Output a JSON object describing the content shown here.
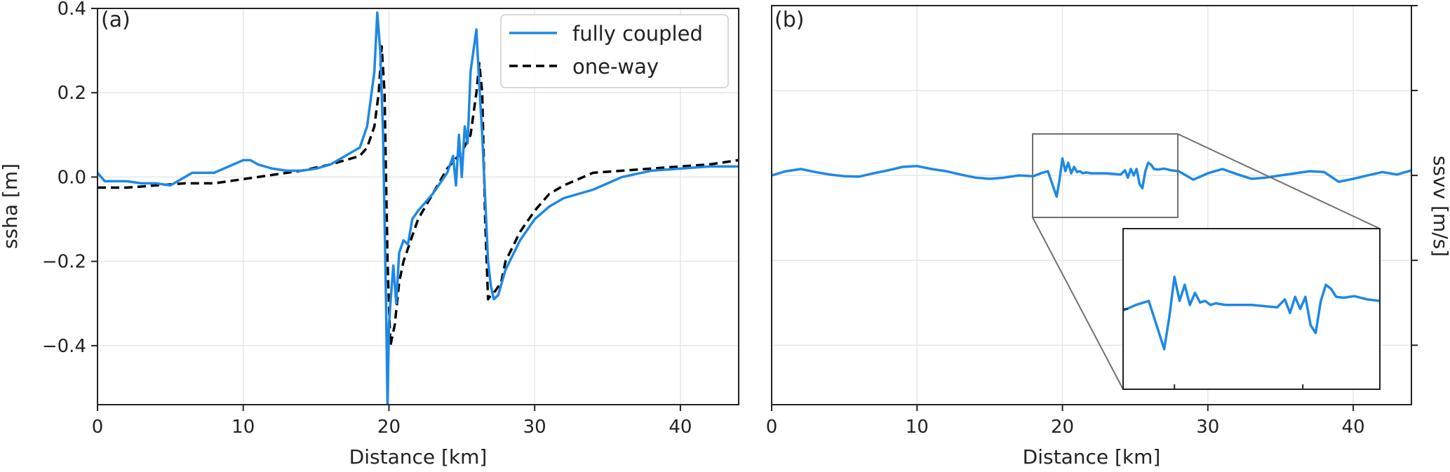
{
  "chart_data": [
    {
      "type": "line",
      "panel_label": "(a)",
      "xlabel": "Distance [km]",
      "ylabel": "ssha [m]",
      "xlim": [
        0,
        44
      ],
      "ylim": [
        -0.54,
        0.4
      ],
      "xticks": [
        0,
        10,
        20,
        30,
        40
      ],
      "xtick_labels": [
        "0",
        "10",
        "20",
        "30",
        "40"
      ],
      "yticks": [
        -0.4,
        -0.2,
        0.0,
        0.2,
        0.4
      ],
      "ytick_labels": [
        "−0.4",
        "−0.2",
        "0.0",
        "0.2",
        "0.4"
      ],
      "grid": true,
      "legend_position": "top-right",
      "series": [
        {
          "name": "fully coupled",
          "color": "#1e88e5",
          "style": "solid",
          "x": [
            0,
            0.5,
            1,
            2,
            3,
            4,
            5,
            6,
            6.5,
            7,
            8,
            9,
            10,
            10.5,
            11,
            12,
            13,
            14,
            15,
            16,
            17,
            17.5,
            18,
            18.5,
            19,
            19.2,
            19.4,
            19.6,
            19.8,
            19.9,
            20,
            20.1,
            20.3,
            20.5,
            20.7,
            21,
            21.3,
            21.6,
            22,
            23,
            24,
            24.4,
            24.6,
            24.8,
            25,
            25.2,
            25.4,
            25.6,
            25.8,
            26,
            26.2,
            26.4,
            26.6,
            26.8,
            27,
            27.2,
            27.5,
            28,
            29,
            30,
            31,
            32,
            34,
            36,
            38,
            40,
            42,
            44
          ],
          "y": [
            0.01,
            -0.01,
            -0.01,
            -0.01,
            -0.015,
            -0.015,
            -0.02,
            0.0,
            0.01,
            0.01,
            0.01,
            0.025,
            0.04,
            0.04,
            0.03,
            0.02,
            0.015,
            0.015,
            0.02,
            0.03,
            0.05,
            0.06,
            0.07,
            0.12,
            0.25,
            0.39,
            0.3,
            0.1,
            -0.3,
            -0.54,
            -0.35,
            -0.3,
            -0.21,
            -0.3,
            -0.18,
            -0.15,
            -0.16,
            -0.1,
            -0.08,
            -0.04,
            0.01,
            0.05,
            -0.02,
            0.1,
            0.0,
            0.12,
            0.08,
            0.25,
            0.3,
            0.35,
            0.22,
            0.1,
            -0.05,
            -0.2,
            -0.26,
            -0.29,
            -0.28,
            -0.22,
            -0.15,
            -0.1,
            -0.07,
            -0.05,
            -0.03,
            0.0,
            0.015,
            0.02,
            0.025,
            0.025
          ]
        },
        {
          "name": "one-way",
          "color": "#000000",
          "style": "dashed",
          "x": [
            0,
            2,
            4,
            6,
            8,
            10,
            12,
            14,
            16,
            17,
            18,
            18.5,
            19,
            19.3,
            19.5,
            19.7,
            19.9,
            20.1,
            20.4,
            20.7,
            21,
            22,
            23,
            24,
            25,
            25.6,
            26,
            26.2,
            26.4,
            26.6,
            26.8,
            27,
            27.3,
            27.7,
            28,
            29,
            30,
            31,
            32,
            34,
            36,
            38,
            40,
            42,
            44
          ],
          "y": [
            -0.025,
            -0.025,
            -0.02,
            -0.015,
            -0.015,
            -0.005,
            0.005,
            0.015,
            0.03,
            0.04,
            0.05,
            0.07,
            0.12,
            0.2,
            0.31,
            0.2,
            -0.2,
            -0.4,
            -0.35,
            -0.25,
            -0.2,
            -0.1,
            -0.04,
            0.02,
            0.06,
            0.1,
            0.2,
            0.27,
            0.2,
            -0.1,
            -0.29,
            -0.28,
            -0.27,
            -0.25,
            -0.2,
            -0.13,
            -0.08,
            -0.04,
            -0.02,
            0.01,
            0.015,
            0.02,
            0.025,
            0.03,
            0.04
          ]
        }
      ]
    },
    {
      "type": "line",
      "panel_label": "(b)",
      "xlabel": "Distance [km]",
      "ylabel": "ssvv [m/s]",
      "xlim": [
        0,
        44
      ],
      "ylim": [
        -0.54,
        0.4
      ],
      "xticks": [
        0,
        10,
        20,
        30,
        40
      ],
      "xtick_labels": [
        "0",
        "10",
        "20",
        "30",
        "40"
      ],
      "yticks": [
        -0.4,
        -0.2,
        0.0,
        0.2,
        0.4
      ],
      "grid": true,
      "inset": {
        "xlim": [
          18,
          28
        ],
        "ylim": [
          -0.1,
          0.1
        ]
      },
      "series": [
        {
          "name": "",
          "color": "#1e88e5",
          "style": "solid",
          "x": [
            0,
            1,
            2,
            3,
            4,
            5,
            6,
            7,
            8,
            9,
            10,
            11,
            12,
            13,
            14,
            15,
            16,
            17,
            18,
            18.5,
            19,
            19.3,
            19.6,
            19.8,
            20,
            20.2,
            20.4,
            20.6,
            20.8,
            21,
            21.2,
            21.4,
            21.6,
            22,
            23,
            24,
            24.3,
            24.5,
            24.7,
            24.9,
            25.1,
            25.3,
            25.5,
            25.7,
            25.9,
            26.1,
            26.3,
            26.6,
            27,
            27.5,
            28,
            29,
            30,
            31,
            32,
            33,
            34,
            35,
            36,
            37,
            38,
            39,
            40,
            41,
            42,
            43,
            44
          ],
          "y": [
            0.0,
            0.01,
            0.015,
            0.008,
            0.002,
            -0.002,
            -0.003,
            0.005,
            0.012,
            0.02,
            0.022,
            0.015,
            0.01,
            0.002,
            -0.005,
            -0.008,
            -0.005,
            0.0,
            -0.002,
            0.005,
            0.01,
            -0.02,
            -0.05,
            -0.01,
            0.04,
            0.01,
            0.03,
            0.005,
            0.02,
            0.008,
            0.01,
            0.005,
            0.007,
            0.005,
            0.005,
            0.002,
            0.012,
            -0.005,
            0.015,
            0.0,
            0.015,
            -0.02,
            -0.03,
            0.01,
            0.03,
            0.025,
            0.015,
            0.014,
            0.016,
            0.012,
            0.01,
            -0.01,
            0.005,
            0.015,
            0.003,
            -0.008,
            -0.005,
            0.0,
            0.005,
            0.01,
            0.008,
            -0.015,
            -0.008,
            0.0,
            0.008,
            0.002,
            0.012
          ]
        }
      ]
    }
  ]
}
